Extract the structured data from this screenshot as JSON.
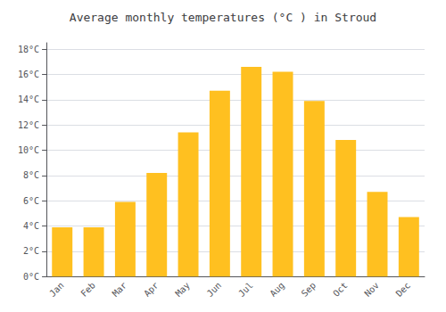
{
  "chart_data": {
    "type": "bar",
    "title": "Average monthly temperatures (°C ) in Stroud",
    "categories": [
      "Jan",
      "Feb",
      "Mar",
      "Apr",
      "May",
      "Jun",
      "Jul",
      "Aug",
      "Sep",
      "Oct",
      "Nov",
      "Dec"
    ],
    "values": [
      3.9,
      3.9,
      5.9,
      8.2,
      11.4,
      14.7,
      16.6,
      16.2,
      13.9,
      10.8,
      6.7,
      4.7
    ],
    "color": "#FFC020",
    "ylim": [
      0,
      18.5
    ],
    "yticks": [
      {
        "value": 0,
        "label": "0°C"
      },
      {
        "value": 2,
        "label": "2°C"
      },
      {
        "value": 4,
        "label": "4°C"
      },
      {
        "value": 6,
        "label": "6°C"
      },
      {
        "value": 8,
        "label": "8°C"
      },
      {
        "value": 10,
        "label": "10°C"
      },
      {
        "value": 12,
        "label": "12°C"
      },
      {
        "value": 14,
        "label": "14°C"
      },
      {
        "value": 16,
        "label": "16°C"
      },
      {
        "value": 18,
        "label": "18°C"
      }
    ],
    "grid": true
  }
}
